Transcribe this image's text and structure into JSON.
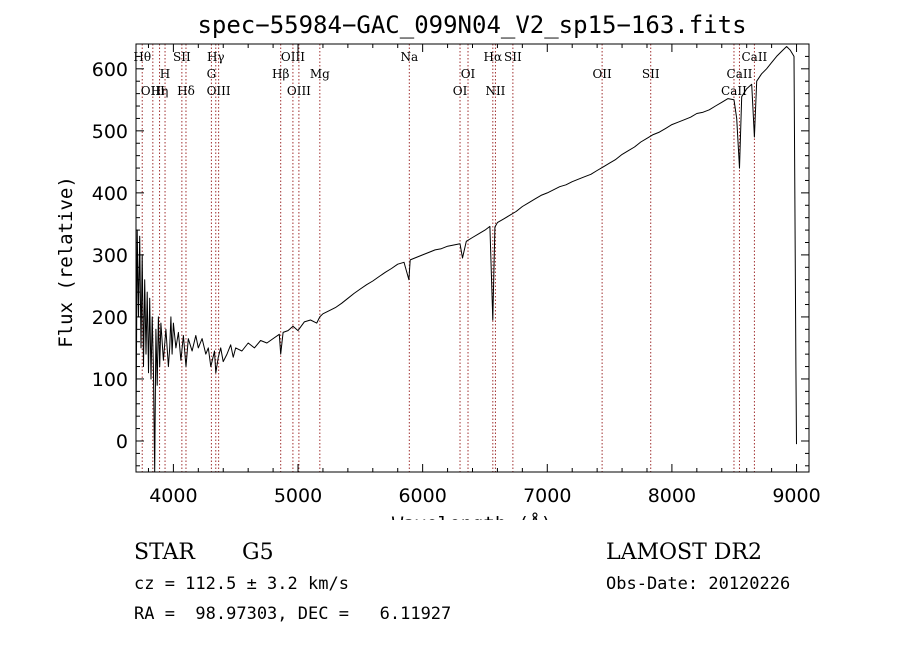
{
  "chart_data": {
    "type": "line",
    "title": "spec−55984−GAC_099N04_V2_sp15−163.fits",
    "xlabel": "Wavelength (Å)",
    "ylabel": "Flux (relative)",
    "xlim": [
      3700,
      9100
    ],
    "ylim": [
      -50,
      640
    ],
    "x_ticks": [
      4000,
      5000,
      6000,
      7000,
      8000,
      9000
    ],
    "y_ticks": [
      0,
      100,
      200,
      300,
      400,
      500,
      600
    ],
    "series": [
      {
        "points": [
          [
            3700,
            10
          ],
          [
            3710,
            340
          ],
          [
            3720,
            200
          ],
          [
            3730,
            330
          ],
          [
            3740,
            150
          ],
          [
            3750,
            300
          ],
          [
            3760,
            120
          ],
          [
            3770,
            260
          ],
          [
            3780,
            140
          ],
          [
            3790,
            240
          ],
          [
            3800,
            110
          ],
          [
            3810,
            230
          ],
          [
            3820,
            100
          ],
          [
            3830,
            200
          ],
          [
            3840,
            120
          ],
          [
            3850,
            -60
          ],
          [
            3860,
            180
          ],
          [
            3870,
            90
          ],
          [
            3880,
            200
          ],
          [
            3890,
            120
          ],
          [
            3900,
            190
          ],
          [
            3920,
            130
          ],
          [
            3940,
            180
          ],
          [
            3960,
            120
          ],
          [
            3970,
            150
          ],
          [
            3980,
            200
          ],
          [
            3990,
            140
          ],
          [
            4000,
            190
          ],
          [
            4020,
            150
          ],
          [
            4040,
            175
          ],
          [
            4060,
            130
          ],
          [
            4080,
            170
          ],
          [
            4101,
            120
          ],
          [
            4120,
            165
          ],
          [
            4150,
            145
          ],
          [
            4180,
            170
          ],
          [
            4200,
            150
          ],
          [
            4230,
            165
          ],
          [
            4260,
            140
          ],
          [
            4280,
            150
          ],
          [
            4300,
            120
          ],
          [
            4330,
            145
          ],
          [
            4340,
            110
          ],
          [
            4360,
            135
          ],
          [
            4380,
            150
          ],
          [
            4400,
            128
          ],
          [
            4430,
            140
          ],
          [
            4460,
            155
          ],
          [
            4480,
            135
          ],
          [
            4500,
            150
          ],
          [
            4550,
            145
          ],
          [
            4600,
            158
          ],
          [
            4650,
            150
          ],
          [
            4700,
            162
          ],
          [
            4750,
            158
          ],
          [
            4800,
            165
          ],
          [
            4850,
            172
          ],
          [
            4861,
            140
          ],
          [
            4880,
            175
          ],
          [
            4920,
            178
          ],
          [
            4960,
            185
          ],
          [
            5000,
            178
          ],
          [
            5050,
            192
          ],
          [
            5100,
            195
          ],
          [
            5150,
            190
          ],
          [
            5175,
            200
          ],
          [
            5200,
            205
          ],
          [
            5250,
            210
          ],
          [
            5300,
            215
          ],
          [
            5350,
            222
          ],
          [
            5400,
            230
          ],
          [
            5450,
            238
          ],
          [
            5500,
            245
          ],
          [
            5550,
            252
          ],
          [
            5600,
            258
          ],
          [
            5650,
            265
          ],
          [
            5700,
            272
          ],
          [
            5750,
            278
          ],
          [
            5800,
            285
          ],
          [
            5850,
            288
          ],
          [
            5890,
            260
          ],
          [
            5900,
            292
          ],
          [
            5950,
            296
          ],
          [
            6000,
            300
          ],
          [
            6050,
            304
          ],
          [
            6100,
            308
          ],
          [
            6150,
            310
          ],
          [
            6200,
            314
          ],
          [
            6250,
            316
          ],
          [
            6300,
            318
          ],
          [
            6320,
            295
          ],
          [
            6350,
            322
          ],
          [
            6400,
            328
          ],
          [
            6450,
            334
          ],
          [
            6500,
            340
          ],
          [
            6540,
            346
          ],
          [
            6563,
            195
          ],
          [
            6580,
            345
          ],
          [
            6600,
            352
          ],
          [
            6650,
            358
          ],
          [
            6700,
            364
          ],
          [
            6750,
            370
          ],
          [
            6800,
            378
          ],
          [
            6850,
            384
          ],
          [
            6900,
            390
          ],
          [
            6950,
            396
          ],
          [
            7000,
            400
          ],
          [
            7050,
            405
          ],
          [
            7100,
            410
          ],
          [
            7150,
            413
          ],
          [
            7200,
            418
          ],
          [
            7250,
            422
          ],
          [
            7300,
            426
          ],
          [
            7350,
            430
          ],
          [
            7400,
            436
          ],
          [
            7450,
            442
          ],
          [
            7500,
            448
          ],
          [
            7550,
            454
          ],
          [
            7600,
            462
          ],
          [
            7650,
            468
          ],
          [
            7700,
            474
          ],
          [
            7750,
            482
          ],
          [
            7800,
            488
          ],
          [
            7850,
            494
          ],
          [
            7900,
            498
          ],
          [
            7950,
            504
          ],
          [
            8000,
            510
          ],
          [
            8050,
            514
          ],
          [
            8100,
            518
          ],
          [
            8150,
            522
          ],
          [
            8200,
            528
          ],
          [
            8250,
            530
          ],
          [
            8300,
            534
          ],
          [
            8350,
            540
          ],
          [
            8400,
            546
          ],
          [
            8450,
            552
          ],
          [
            8498,
            550
          ],
          [
            8520,
            520
          ],
          [
            8542,
            440
          ],
          [
            8560,
            555
          ],
          [
            8600,
            568
          ],
          [
            8640,
            575
          ],
          [
            8662,
            490
          ],
          [
            8680,
            580
          ],
          [
            8720,
            592
          ],
          [
            8760,
            600
          ],
          [
            8800,
            610
          ],
          [
            8840,
            620
          ],
          [
            8880,
            628
          ],
          [
            8920,
            636
          ],
          [
            8950,
            630
          ],
          [
            8980,
            620
          ],
          [
            8995,
            120
          ],
          [
            9000,
            -5
          ]
        ]
      }
    ],
    "lines": [
      {
        "w": 3750,
        "l": "Hθ",
        "r": 1
      },
      {
        "w": 3835,
        "l": "OIII",
        "r": 3
      },
      {
        "w": 3889,
        "l": "Hη",
        "r": 3
      },
      {
        "w": 3933,
        "l": "H",
        "r": 2
      },
      {
        "w": 4068,
        "l": "SII",
        "r": 1
      },
      {
        "w": 4101,
        "l": "Hδ",
        "r": 3
      },
      {
        "w": 4305,
        "l": "G",
        "r": 2
      },
      {
        "w": 4340,
        "l": "Hγ",
        "r": 1
      },
      {
        "w": 4363,
        "l": "OIII",
        "r": 3
      },
      {
        "w": 4861,
        "l": "Hβ",
        "r": 2
      },
      {
        "w": 4959,
        "l": "OIII",
        "r": 1
      },
      {
        "w": 5007,
        "l": "OIII",
        "r": 3
      },
      {
        "w": 5175,
        "l": "Mg",
        "r": 2
      },
      {
        "w": 5893,
        "l": "Na",
        "r": 1
      },
      {
        "w": 6300,
        "l": "OI",
        "r": 3
      },
      {
        "w": 6364,
        "l": "OI",
        "r": 2
      },
      {
        "w": 6563,
        "l": "Hα",
        "r": 1
      },
      {
        "w": 6584,
        "l": "NII",
        "r": 3
      },
      {
        "w": 6724,
        "l": "SII",
        "r": 1
      },
      {
        "w": 7440,
        "l": "OII",
        "r": 2
      },
      {
        "w": 7830,
        "l": "SII",
        "r": 2
      },
      {
        "w": 8498,
        "l": "CaII",
        "r": 3
      },
      {
        "w": 8542,
        "l": "CaII",
        "r": 2
      },
      {
        "w": 8662,
        "l": "CaII",
        "r": 1
      }
    ],
    "grid": false,
    "line_color": "#000000",
    "marker_color": "#a03030"
  },
  "info": {
    "class_label": "STAR",
    "subclass": "G5",
    "survey": "LAMOST DR2",
    "cz": "cz = 112.5 ± 3.2 km/s",
    "obs_date": "Obs-Date: 20120226",
    "coords": "RA =  98.97303, DEC =   6.11927"
  }
}
